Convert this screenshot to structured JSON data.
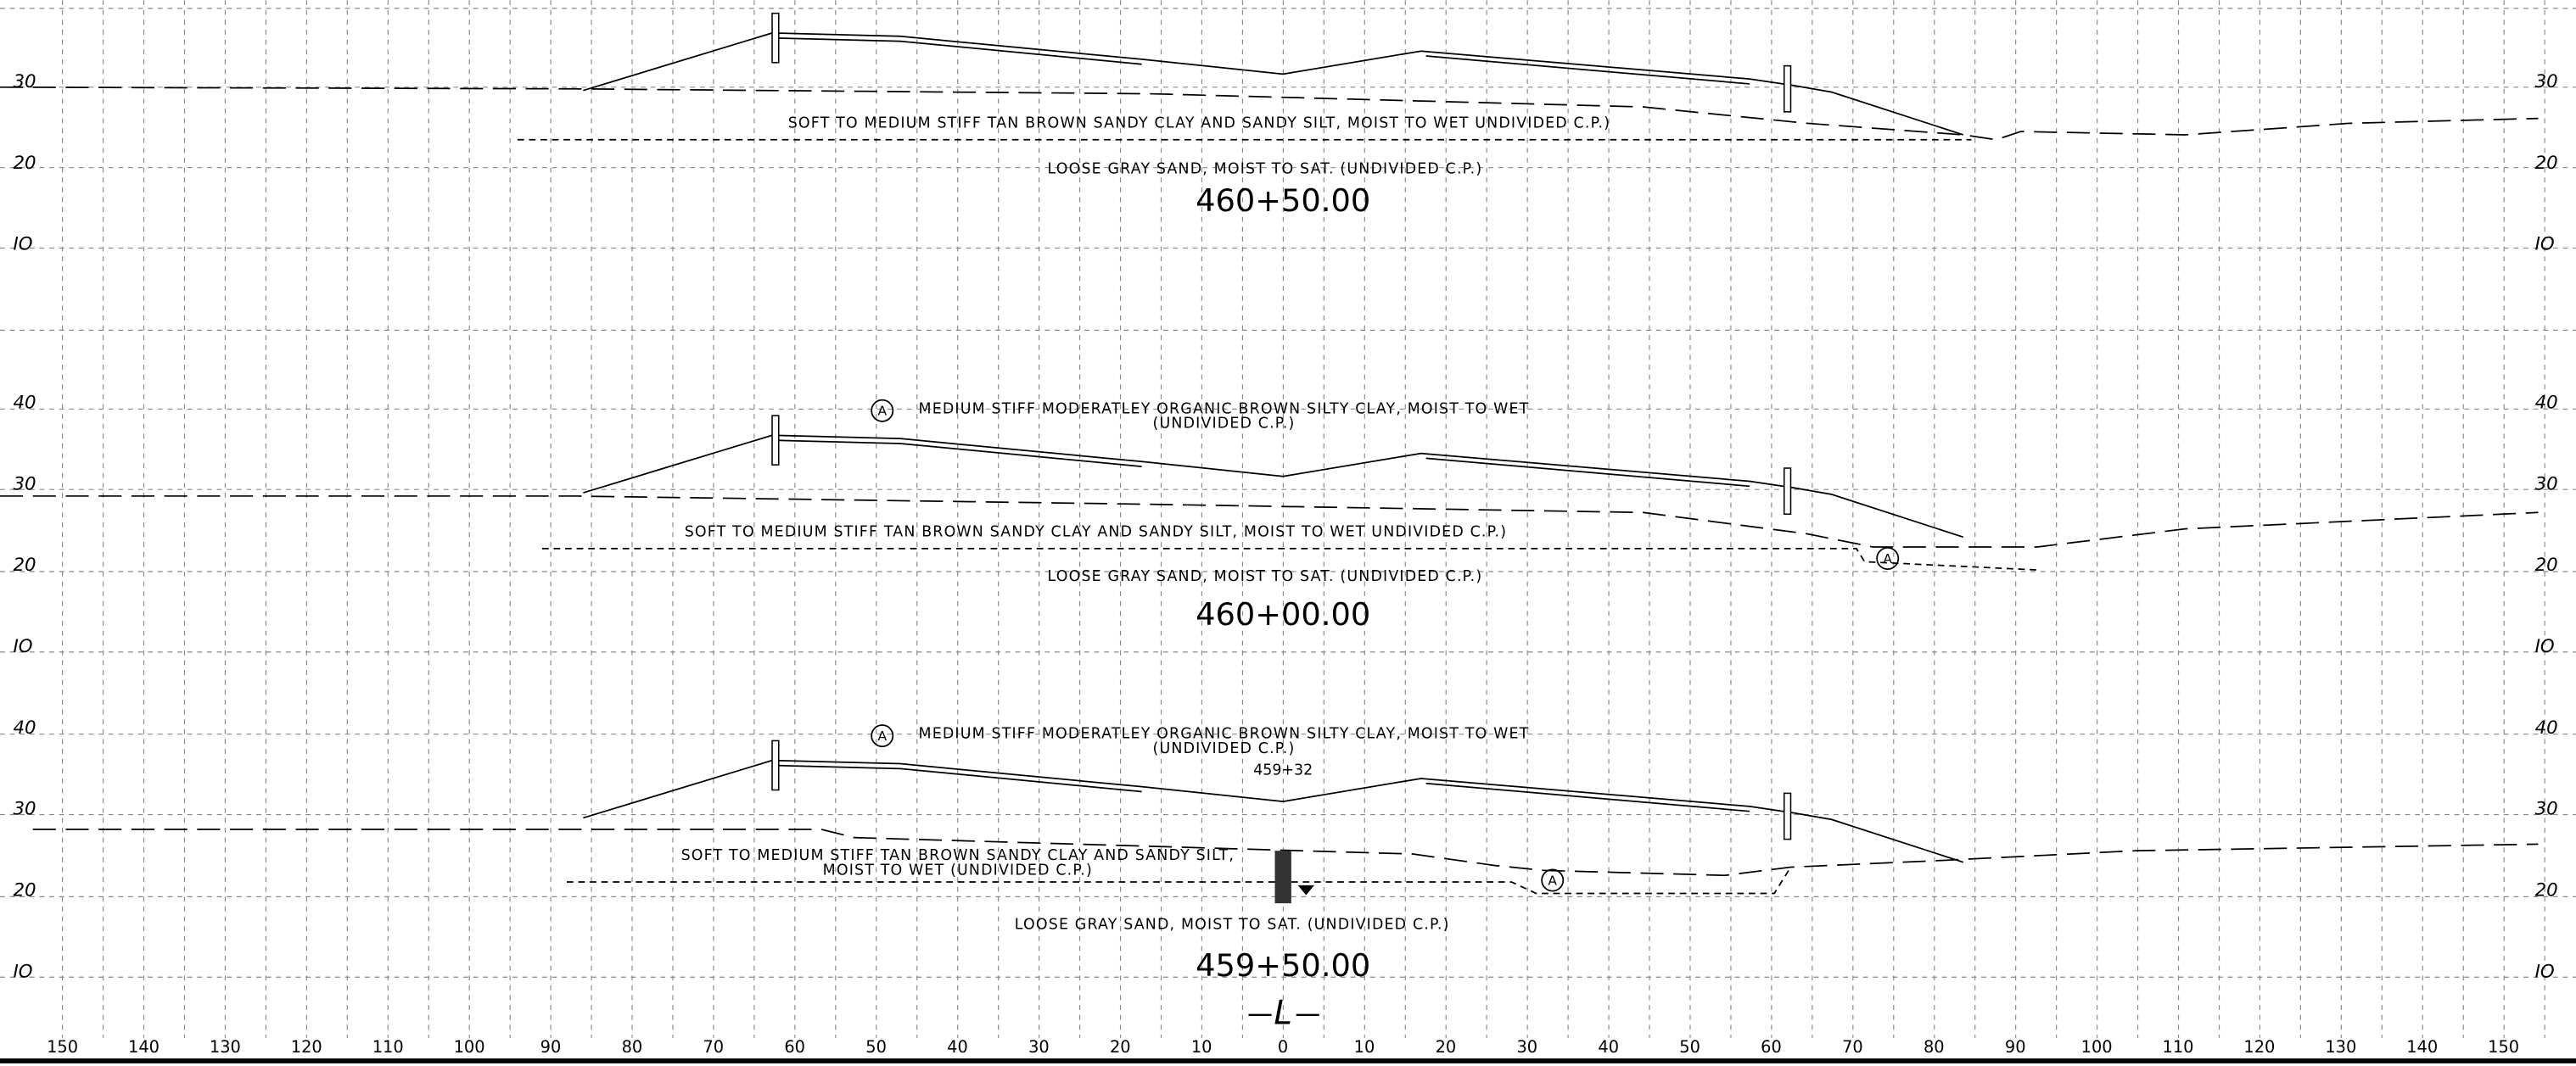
{
  "sections": [
    {
      "station": "460+50.00",
      "elevations": [
        "30",
        "20",
        "IO"
      ],
      "soil_layers": [
        "SOFT TO MEDIUM STIFF TAN BROWN SANDY CLAY AND SANDY SILT, MOIST TO WET UNDIVIDED C.P.)",
        "LOOSE GRAY SAND, MOIST TO SAT. (UNDIVIDED C.P.)"
      ]
    },
    {
      "station": "460+00.00",
      "elevations": [
        "40",
        "30",
        "20",
        "IO"
      ],
      "marker": "A",
      "marker_note": [
        "MEDIUM STIFF MODERATLEY ORGANIC BROWN SILTY CLAY, MOIST TO WET",
        "(UNDIVIDED C.P.)"
      ],
      "soil_layers": [
        "SOFT TO MEDIUM STIFF TAN BROWN SANDY CLAY AND SANDY SILT, MOIST TO WET UNDIVIDED C.P.)",
        "LOOSE GRAY SAND, MOIST TO SAT. (UNDIVIDED C.P.)"
      ]
    },
    {
      "station": "459+50.00",
      "elevations": [
        "40",
        "30",
        "20",
        "IO"
      ],
      "marker": "A",
      "marker_note": [
        "MEDIUM STIFF MODERATLEY ORGANIC BROWN SILTY CLAY, MOIST TO WET",
        "(UNDIVIDED C.P.)"
      ],
      "boring": "459+32",
      "soil_layers": [
        "SOFT TO MEDIUM STIFF TAN BROWN SANDY CLAY AND SANDY SILT,",
        "MOIST TO WET (UNDIVIDED C.P.)",
        "LOOSE GRAY SAND, MOIST TO SAT. (UNDIVIDED C.P.)"
      ]
    }
  ],
  "offsets": [
    "150",
    "140",
    "130",
    "120",
    "110",
    "100",
    "90",
    "80",
    "70",
    "60",
    "50",
    "40",
    "30",
    "20",
    "10",
    "0",
    "10",
    "20",
    "30",
    "40",
    "50",
    "60",
    "70",
    "80",
    "90",
    "100",
    "110",
    "120",
    "130",
    "140",
    "150"
  ],
  "centerline": "L"
}
